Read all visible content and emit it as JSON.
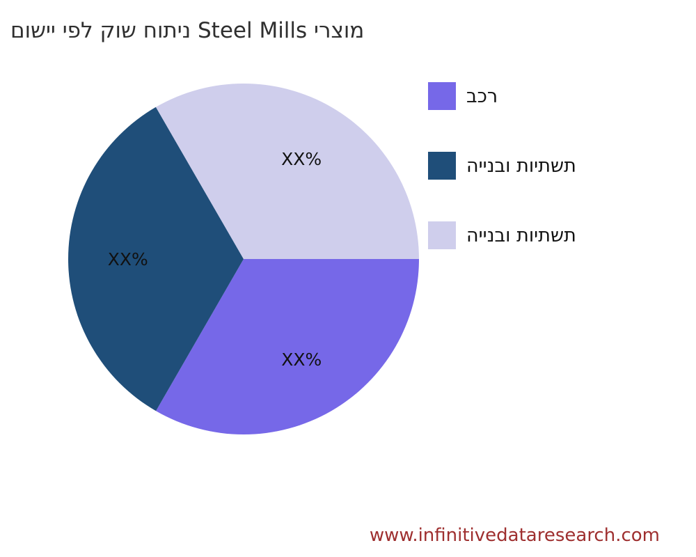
{
  "page": {
    "background": "#ffffff"
  },
  "title": {
    "text": "מוצרי Steel Mills ניתוח שוק לפי יישום",
    "color": "#2f2f2f"
  },
  "legend": {
    "items": [
      {
        "label": "רכב",
        "color": "#7668E8"
      },
      {
        "label": "תשתיות ובנייה",
        "color": "#1F4E79"
      },
      {
        "label": "תשתיות ובנייה",
        "color": "#CFCEEC"
      }
    ]
  },
  "footer": {
    "website": "www.infinitivedataresearch.com",
    "color": "#9E2F2F"
  },
  "chart_data": {
    "type": "pie",
    "title": "מוצרי Steel Mills ניתוח שוק לפי יישום",
    "legend_position": "right",
    "background": "#ffffff",
    "start_angle_deg": 0,
    "direction": "clockwise",
    "pct_distance": 0.66,
    "label_color": "#111111",
    "slices": [
      {
        "label": "רכב",
        "value": 33.33,
        "display": "XX%",
        "color": "#7668E8"
      },
      {
        "label": "תשתיות ובנייה",
        "value": 33.33,
        "display": "XX%",
        "color": "#1F4E79"
      },
      {
        "label": "תשתיות ובנייה",
        "value": 33.34,
        "display": "XX%",
        "color": "#CFCEEC"
      }
    ]
  }
}
